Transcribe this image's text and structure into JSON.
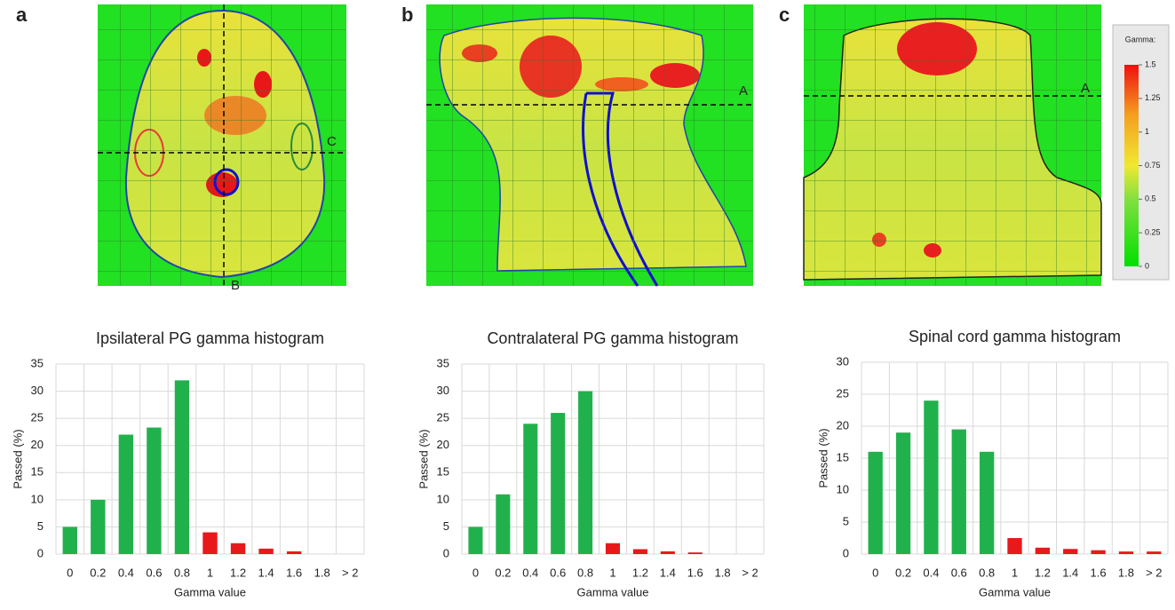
{
  "figure": {
    "panels": [
      "a",
      "b",
      "c"
    ],
    "map_labels": [
      "C",
      "B",
      "A",
      "A"
    ],
    "colorbar": {
      "title": "Gamma:",
      "lim": [
        0,
        1.5
      ],
      "ticks": [
        0,
        0.25,
        0.5,
        0.75,
        1,
        1.25,
        1.5
      ]
    }
  },
  "chart_data": [
    {
      "type": "bar",
      "title": "Ipsilateral PG gamma histogram",
      "x_label": "Gamma value",
      "y_label": "Passed (%)",
      "categories": [
        "0",
        "0.2",
        "0.4",
        "0.6",
        "0.8",
        "1",
        "1.2",
        "1.4",
        "1.6",
        "1.8",
        "> 2"
      ],
      "values": [
        5,
        10,
        22,
        23.3,
        32,
        4,
        2,
        1,
        0.5,
        0,
        0
      ],
      "colors": [
        "#21b14c",
        "#21b14c",
        "#21b14c",
        "#21b14c",
        "#21b14c",
        "#e8191b",
        "#e8191b",
        "#e8191b",
        "#e8191b",
        "#e8191b",
        "#e8191b"
      ],
      "ylim": [
        0,
        35
      ],
      "yticks": [
        0,
        5,
        10,
        15,
        20,
        25,
        30,
        35
      ],
      "grid": true
    },
    {
      "type": "bar",
      "title": "Contralateral PG gamma histogram",
      "x_label": "Gamma value",
      "y_label": "Passed (%)",
      "categories": [
        "0",
        "0.2",
        "0.4",
        "0.6",
        "0.8",
        "1",
        "1.2",
        "1.4",
        "1.6",
        "1.8",
        "> 2"
      ],
      "values": [
        5,
        11,
        24,
        26,
        30,
        2,
        0.9,
        0.5,
        0.3,
        0,
        0
      ],
      "colors": [
        "#21b14c",
        "#21b14c",
        "#21b14c",
        "#21b14c",
        "#21b14c",
        "#e8191b",
        "#e8191b",
        "#e8191b",
        "#e8191b",
        "#e8191b",
        "#e8191b"
      ],
      "ylim": [
        0,
        35
      ],
      "yticks": [
        0,
        5,
        10,
        15,
        20,
        25,
        30,
        35
      ],
      "grid": true
    },
    {
      "type": "bar",
      "title": "Spinal cord gamma histogram",
      "x_label": "Gamma value",
      "y_label": "Passed (%)",
      "categories": [
        "0",
        "0.2",
        "0.4",
        "0.6",
        "0.8",
        "1",
        "1.2",
        "1.4",
        "1.6",
        "1.8",
        "> 2"
      ],
      "values": [
        16,
        19,
        24,
        19.5,
        16,
        2.5,
        1,
        0.8,
        0.6,
        0.4,
        0.4
      ],
      "colors": [
        "#21b14c",
        "#21b14c",
        "#21b14c",
        "#21b14c",
        "#21b14c",
        "#e8191b",
        "#e8191b",
        "#e8191b",
        "#e8191b",
        "#e8191b",
        "#e8191b"
      ],
      "ylim": [
        0,
        30
      ],
      "yticks": [
        0,
        5,
        10,
        15,
        20,
        25,
        30
      ],
      "grid": true
    }
  ]
}
